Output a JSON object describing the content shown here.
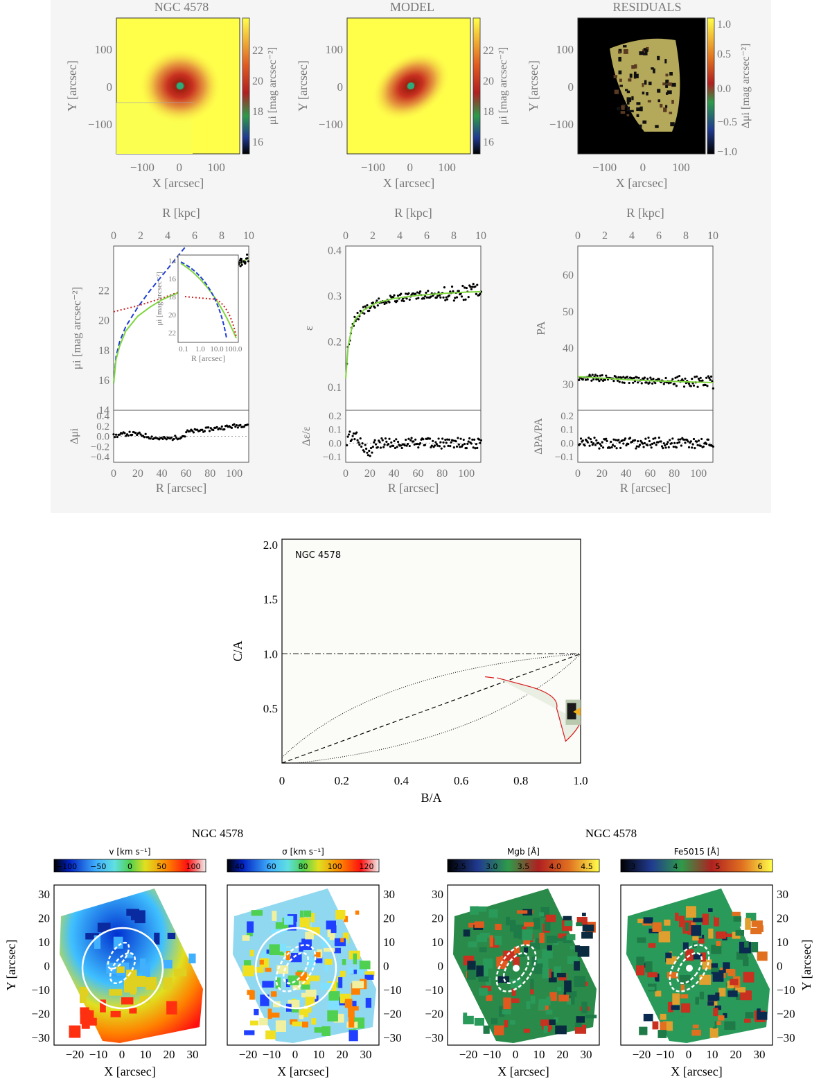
{
  "galaxy": "NGC 4578",
  "colors": {
    "yellow": "#ffff4a",
    "green": "#7fd640",
    "blue": "#1f3fd0",
    "red": "#d02020",
    "black": "#000000",
    "panel_bg": "#f5f5f5",
    "contour": "#d81b1b"
  },
  "chart_data": [
    {
      "type": "heatmap",
      "title": "NGC 4578",
      "xlabel": "X [arcsec]",
      "ylabel": "Y [arcsec]",
      "xticks": [
        "−100",
        "0",
        "100"
      ],
      "yticks": [
        "100",
        "0",
        "−100"
      ],
      "colorbar_label": "μi [mag arcsec⁻²]",
      "colorbar_ticks": [
        "22",
        "20",
        "18",
        "16"
      ]
    },
    {
      "type": "heatmap",
      "title": "MODEL",
      "xlabel": "X [arcsec]",
      "ylabel": "Y [arcsec]",
      "xticks": [
        "−100",
        "0",
        "100"
      ],
      "yticks": [
        "100",
        "0",
        "−100"
      ],
      "colorbar_label": "μi [mag arcsec⁻²]",
      "colorbar_ticks": [
        "22",
        "20",
        "18",
        "16"
      ]
    },
    {
      "type": "heatmap",
      "title": "RESIDUALS",
      "xlabel": "X [arcsec]",
      "ylabel": "Y [arcsec]",
      "xticks": [
        "−100",
        "0",
        "100"
      ],
      "yticks": [
        "100",
        "0",
        "−100"
      ],
      "colorbar_label": "Δμi [mag arcsec⁻²]",
      "colorbar_ticks": [
        "1.0",
        "0.5",
        "0.0",
        "−0.5",
        "−1.0"
      ]
    },
    {
      "type": "line",
      "top_axis_label": "R [kpc]",
      "top_ticks": [
        "0",
        "2",
        "4",
        "6",
        "8",
        "10"
      ],
      "xlabel": "R [arcsec]",
      "xticks": [
        "0",
        "20",
        "40",
        "60",
        "80",
        "100"
      ],
      "ylabel": "μi [mag arcsec⁻²]",
      "yticks": [
        "14",
        "16",
        "18",
        "20",
        "22"
      ],
      "ylim": [
        14,
        25
      ],
      "xlim": [
        0,
        112
      ],
      "residual_label": "Δμi",
      "residual_ticks": [
        "0.4",
        "0.2",
        "0.0",
        "−0.2",
        "−0.4"
      ],
      "series": [
        {
          "name": "",
          "color": "#1f3fd0",
          "style": "dashed",
          "x": [
            0,
            2,
            5,
            10,
            20,
            30,
            40,
            50,
            60
          ],
          "y": [
            15.8,
            17.6,
            18.6,
            19.6,
            20.9,
            22.0,
            23.0,
            24.0,
            25.0
          ]
        },
        {
          "name": "",
          "color": "#d02020",
          "style": "dotted",
          "x": [
            0,
            20,
            40,
            60,
            80,
            100,
            112
          ],
          "y": [
            20.6,
            21.0,
            21.5,
            22.1,
            22.8,
            23.6,
            24.2
          ]
        },
        {
          "name": "",
          "color": "#7fd640",
          "style": "solid",
          "x": [
            0,
            2,
            5,
            10,
            20,
            30,
            40,
            60,
            80,
            100,
            112
          ],
          "y": [
            15.8,
            17.4,
            18.3,
            19.3,
            20.3,
            20.9,
            21.4,
            22.1,
            22.8,
            23.6,
            24.2
          ]
        }
      ],
      "inset": {
        "xlabel": "R [arcsec]",
        "ylabel": "μi [mag arcsec⁻²]",
        "xticks": [
          "0.1",
          "1.0",
          "10.0",
          "100.0"
        ],
        "yticks": [
          "14",
          "16",
          "18",
          "20",
          "22"
        ]
      }
    },
    {
      "type": "scatter",
      "top_axis_label": "R [kpc]",
      "top_ticks": [
        "0",
        "2",
        "4",
        "6",
        "8",
        "10"
      ],
      "xlabel": "R [arcsec]",
      "xticks": [
        "0",
        "20",
        "40",
        "60",
        "80",
        "100"
      ],
      "ylabel": "ε",
      "yticks": [
        "0.4",
        "0.3",
        "0.2",
        "0.1"
      ],
      "ylim": [
        0.05,
        0.41
      ],
      "xlim": [
        0,
        112
      ],
      "residual_label": "Δε/ε",
      "residual_ticks": [
        "0.2",
        "0.1",
        "0.0",
        "−0.1"
      ],
      "model": {
        "x": [
          0,
          2,
          5,
          8,
          15,
          25,
          40,
          60,
          80,
          100,
          112
        ],
        "y": [
          0.12,
          0.19,
          0.23,
          0.25,
          0.27,
          0.285,
          0.295,
          0.302,
          0.306,
          0.309,
          0.31
        ]
      }
    },
    {
      "type": "scatter",
      "top_axis_label": "R [kpc]",
      "top_ticks": [
        "0",
        "2",
        "4",
        "6",
        "8",
        "10"
      ],
      "xlabel": "R [arcsec]",
      "xticks": [
        "0",
        "20",
        "40",
        "60",
        "80",
        "100"
      ],
      "ylabel": "PA",
      "yticks": [
        "60",
        "50",
        "40",
        "30"
      ],
      "ylim": [
        23,
        68
      ],
      "xlim": [
        0,
        112
      ],
      "residual_label": "ΔPA/PA",
      "residual_ticks": [
        "0.2",
        "0.1",
        "0.0",
        "−0.1"
      ],
      "model": {
        "x": [
          0,
          20,
          40,
          60,
          80,
          100,
          112
        ],
        "y": [
          32.2,
          31.8,
          31.4,
          31.1,
          30.9,
          30.7,
          30.6
        ]
      }
    },
    {
      "type": "line",
      "label": "NGC 4578",
      "xlabel": "B/A",
      "ylabel": "C/A",
      "xticks": [
        "0",
        "0.2",
        "0.4",
        "0.6",
        "0.8",
        "1.0"
      ],
      "yticks": [
        "0.5",
        "1.0",
        "1.5",
        "2.0"
      ],
      "xlim": [
        0,
        1.0
      ],
      "ylim": [
        0,
        2.05
      ]
    },
    {
      "type": "heatmap",
      "title": "NGC 4578",
      "colorbar_label": "v [km s⁻¹]",
      "colorbar_ticks": [
        "−100",
        "−50",
        "0",
        "50",
        "100"
      ],
      "xlabel": "X [arcsec]",
      "ylabel": "Y [arcsec]",
      "xticks": [
        "−20",
        "−10",
        "0",
        "10",
        "20",
        "30"
      ],
      "yticks": [
        "30",
        "20",
        "10",
        "0",
        "−10",
        "−20",
        "−30"
      ]
    },
    {
      "type": "heatmap",
      "colorbar_label": "σ [km s⁻¹]",
      "colorbar_ticks": [
        "40",
        "60",
        "80",
        "100",
        "120"
      ],
      "xlabel": "X [arcsec]",
      "xticks": [
        "−20",
        "−10",
        "0",
        "10",
        "20",
        "30"
      ],
      "yticks": [
        "30",
        "20",
        "10",
        "0",
        "−10",
        "−20",
        "−30"
      ]
    },
    {
      "type": "heatmap",
      "title": "NGC 4578",
      "colorbar_label": "Mgb [Å]",
      "colorbar_ticks": [
        "2.5",
        "3.0",
        "3.5",
        "4.0",
        "4.5"
      ],
      "xlabel": "X [arcsec]",
      "xticks": [
        "−20",
        "−10",
        "0",
        "10",
        "20",
        "30"
      ],
      "yticks": [
        "30",
        "20",
        "10",
        "0",
        "−10",
        "−20",
        "−30"
      ]
    },
    {
      "type": "heatmap",
      "colorbar_label": "Fe5015 [Å]",
      "colorbar_ticks": [
        "3",
        "4",
        "5",
        "6"
      ],
      "xlabel": "X [arcsec]",
      "ylabel": "Y [arcsec]",
      "xticks": [
        "−20",
        "−10",
        "0",
        "10",
        "20",
        "30"
      ],
      "yticks": [
        "30",
        "20",
        "10",
        "0",
        "−10",
        "−20",
        "−30"
      ]
    }
  ]
}
